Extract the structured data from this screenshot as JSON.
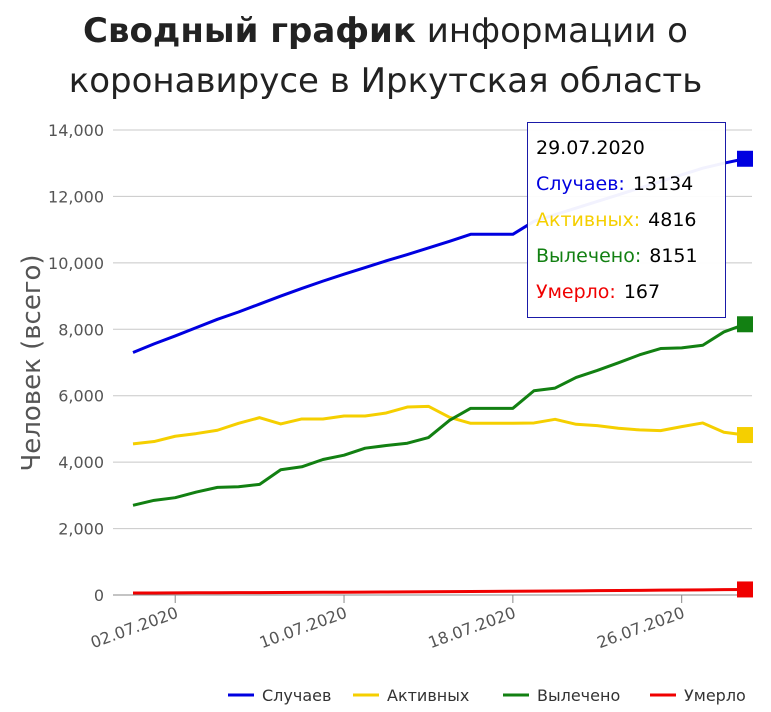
{
  "chart_data": {
    "type": "line",
    "title_bold": "Сводный график",
    "title_rest": "информации о коронавирусе в Иркутская область",
    "ylabel": "Человек (всего)",
    "xlabel": "",
    "ylim": [
      0,
      14000
    ],
    "yticks": [
      "0",
      "2,000",
      "4,000",
      "6,000",
      "8,000",
      "10,000",
      "12,000",
      "14,000"
    ],
    "ytick_values": [
      0,
      2000,
      4000,
      6000,
      8000,
      10000,
      12000,
      14000
    ],
    "xticks": [
      "02.07.2020",
      "10.07.2020",
      "18.07.2020",
      "26.07.2020"
    ],
    "xtick_days": [
      2,
      10,
      18,
      26
    ],
    "x_dates": [
      "30.06.2020",
      "01.07.2020",
      "02.07.2020",
      "03.07.2020",
      "04.07.2020",
      "05.07.2020",
      "06.07.2020",
      "07.07.2020",
      "08.07.2020",
      "09.07.2020",
      "10.07.2020",
      "11.07.2020",
      "12.07.2020",
      "13.07.2020",
      "14.07.2020",
      "15.07.2020",
      "16.07.2020",
      "17.07.2020",
      "18.07.2020",
      "19.07.2020",
      "20.07.2020",
      "21.07.2020",
      "22.07.2020",
      "23.07.2020",
      "24.07.2020",
      "25.07.2020",
      "26.07.2020",
      "27.07.2020",
      "28.07.2020",
      "29.07.2020"
    ],
    "x_days": [
      0,
      1,
      2,
      3,
      4,
      5,
      6,
      7,
      8,
      9,
      10,
      11,
      12,
      13,
      14,
      15,
      16,
      17,
      18,
      19,
      20,
      21,
      22,
      23,
      24,
      25,
      26,
      27,
      28,
      29
    ],
    "grid": true,
    "legend_position": "bottom-right",
    "series": [
      {
        "name": "Случаев",
        "color": "#0000e0",
        "values": [
          7300,
          7560,
          7800,
          8050,
          8300,
          8520,
          8760,
          9000,
          9230,
          9450,
          9660,
          9860,
          10060,
          10250,
          10450,
          10650,
          10860,
          10860,
          10860,
          11250,
          11450,
          11650,
          11850,
          12050,
          12250,
          12450,
          12650,
          12850,
          13000,
          13134
        ]
      },
      {
        "name": "Активных",
        "color": "#f5cf00",
        "values": [
          4550,
          4620,
          4780,
          4860,
          4960,
          5170,
          5340,
          5150,
          5300,
          5300,
          5390,
          5390,
          5480,
          5660,
          5680,
          5350,
          5170,
          5170,
          5170,
          5180,
          5290,
          5140,
          5100,
          5020,
          4970,
          4950,
          5070,
          5180,
          4900,
          4816
        ]
      },
      {
        "name": "Вылечено",
        "color": "#128012",
        "values": [
          2700,
          2850,
          2930,
          3100,
          3240,
          3260,
          3330,
          3770,
          3860,
          4080,
          4210,
          4420,
          4500,
          4570,
          4740,
          5260,
          5620,
          5620,
          5620,
          6150,
          6230,
          6550,
          6760,
          6990,
          7230,
          7420,
          7440,
          7520,
          7920,
          8151
        ]
      },
      {
        "name": "Умерло",
        "color": "#f00000",
        "values": [
          60,
          62,
          64,
          66,
          68,
          70,
          72,
          75,
          78,
          81,
          84,
          87,
          90,
          93,
          96,
          100,
          104,
          108,
          112,
          116,
          121,
          126,
          131,
          136,
          141,
          146,
          151,
          156,
          161,
          167
        ]
      }
    ],
    "tooltip": {
      "date": "29.07.2020",
      "rows": [
        {
          "label": "Случаев:",
          "value": "13134",
          "color": "#0000e0"
        },
        {
          "label": "Активных:",
          "value": "4816",
          "color": "#f5cf00"
        },
        {
          "label": "Вылечено:",
          "value": "8151",
          "color": "#128012"
        },
        {
          "label": "Умерло:",
          "value": "167",
          "color": "#f00000"
        }
      ]
    }
  }
}
